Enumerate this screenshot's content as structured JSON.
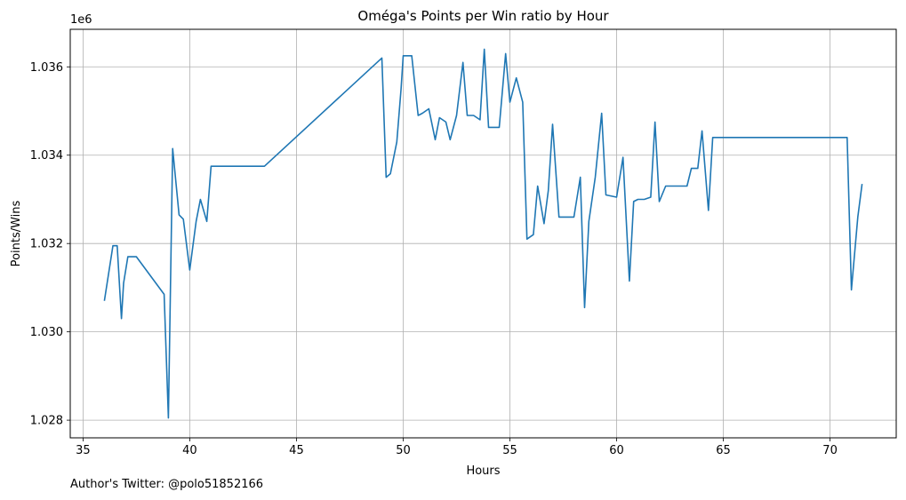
{
  "chart_data": {
    "type": "line",
    "title": "Oméga's Points per Win ratio by Hour",
    "xlabel": "Hours",
    "ylabel": "Points/Wins",
    "y_offset_label": "1e6",
    "xlim": [
      34.4,
      73.1
    ],
    "ylim": [
      1027600,
      1036850
    ],
    "x_ticks": [
      35,
      40,
      45,
      50,
      55,
      60,
      65,
      70
    ],
    "y_ticks": [
      1028000,
      1030000,
      1032000,
      1034000,
      1036000
    ],
    "y_tick_labels": [
      "1.028",
      "1.030",
      "1.032",
      "1.034",
      "1.036"
    ],
    "grid": true,
    "line_color": "#1f77b4",
    "series": [
      {
        "x": [
          36.0,
          36.4,
          36.6,
          36.8,
          36.9,
          37.1,
          37.5,
          38.8,
          39.0,
          39.2,
          39.5,
          39.7,
          40.0,
          40.3,
          40.5,
          40.8,
          41.0,
          43.5,
          49.0,
          49.2,
          49.4,
          49.7,
          49.9,
          50.0,
          50.4,
          50.7,
          50.9,
          51.2,
          51.5,
          51.7,
          52.0,
          52.2,
          52.5,
          52.8,
          53.0,
          53.3,
          53.6,
          53.8,
          54.0,
          54.5,
          54.8,
          55.0,
          55.3,
          55.6,
          55.8,
          56.1,
          56.3,
          56.6,
          56.8,
          57.0,
          57.3,
          57.6,
          58.0,
          58.3,
          58.5,
          58.7,
          59.0,
          59.3,
          59.5,
          60.0,
          60.3,
          60.6,
          60.8,
          61.0,
          61.3,
          61.6,
          61.8,
          62.0,
          62.3,
          62.8,
          63.3,
          63.5,
          63.8,
          64.0,
          64.3,
          64.5,
          65.0,
          70.8,
          71.0,
          71.3,
          71.5
        ],
        "y": [
          1030700,
          1031950,
          1031950,
          1030300,
          1031100,
          1031700,
          1031700,
          1030850,
          1028050,
          1034150,
          1032650,
          1032550,
          1031400,
          1032500,
          1033000,
          1032500,
          1033750,
          1033750,
          1036200,
          1033500,
          1033580,
          1034300,
          1035500,
          1036250,
          1036250,
          1034900,
          1034950,
          1035050,
          1034350,
          1034850,
          1034750,
          1034350,
          1034900,
          1036100,
          1034900,
          1034900,
          1034800,
          1036400,
          1034630,
          1034630,
          1036300,
          1035200,
          1035750,
          1035200,
          1032100,
          1032200,
          1033300,
          1032450,
          1033200,
          1034700,
          1032600,
          1032600,
          1032600,
          1033500,
          1030550,
          1032500,
          1033500,
          1034950,
          1033100,
          1033050,
          1033950,
          1031150,
          1032950,
          1033000,
          1033000,
          1033050,
          1034750,
          1032950,
          1033300,
          1033300,
          1033300,
          1033700,
          1033700,
          1034550,
          1032750,
          1034400,
          1034400,
          1034400,
          1030950,
          1032600,
          1033350
        ]
      }
    ]
  },
  "footer": {
    "credit": "Author's Twitter: @polo51852166"
  }
}
